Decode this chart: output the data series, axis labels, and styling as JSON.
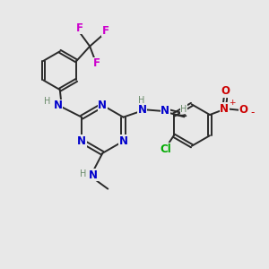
{
  "bg_color": "#e8e8e8",
  "bond_color": "#2a2a2a",
  "N_color": "#0000cc",
  "H_color": "#6a8a6a",
  "F_color": "#cc00cc",
  "Cl_color": "#00aa00",
  "O_color": "#cc0000",
  "figsize": [
    3.0,
    3.0
  ],
  "dpi": 100,
  "xlim": [
    0,
    10
  ],
  "ylim": [
    0,
    10
  ]
}
